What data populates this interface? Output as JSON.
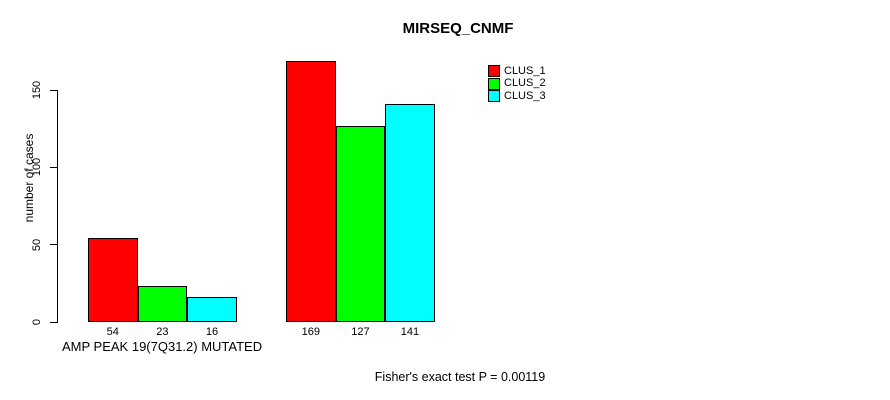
{
  "chart_data": {
    "type": "bar",
    "title": "MIRSEQ_CNMF",
    "ylabel": "number of cases",
    "xlabel": "",
    "categories": [
      "AMP PEAK 19(7Q31.2) MUTATED",
      ""
    ],
    "series": [
      {
        "name": "CLUS_1",
        "color": "#ff0000",
        "values": [
          54,
          169
        ]
      },
      {
        "name": "CLUS_2",
        "color": "#00ff00",
        "values": [
          23,
          127
        ]
      },
      {
        "name": "CLUS_3",
        "color": "#00ffff",
        "values": [
          16,
          141
        ]
      }
    ],
    "ylim": [
      0,
      150
    ],
    "yticks": [
      0,
      50,
      100,
      150
    ],
    "grid": false,
    "show_values_below_bars": true,
    "legend_position": "top-right",
    "legend_items": [
      "CLUS_1",
      "CLUS_2",
      "CLUS_3"
    ],
    "annotation": "Fisher's exact test P = 0.00119",
    "axis_color": "#000000",
    "text_color": "#000000",
    "bar_border_color": "#000000",
    "background_color": "#ffffff"
  }
}
